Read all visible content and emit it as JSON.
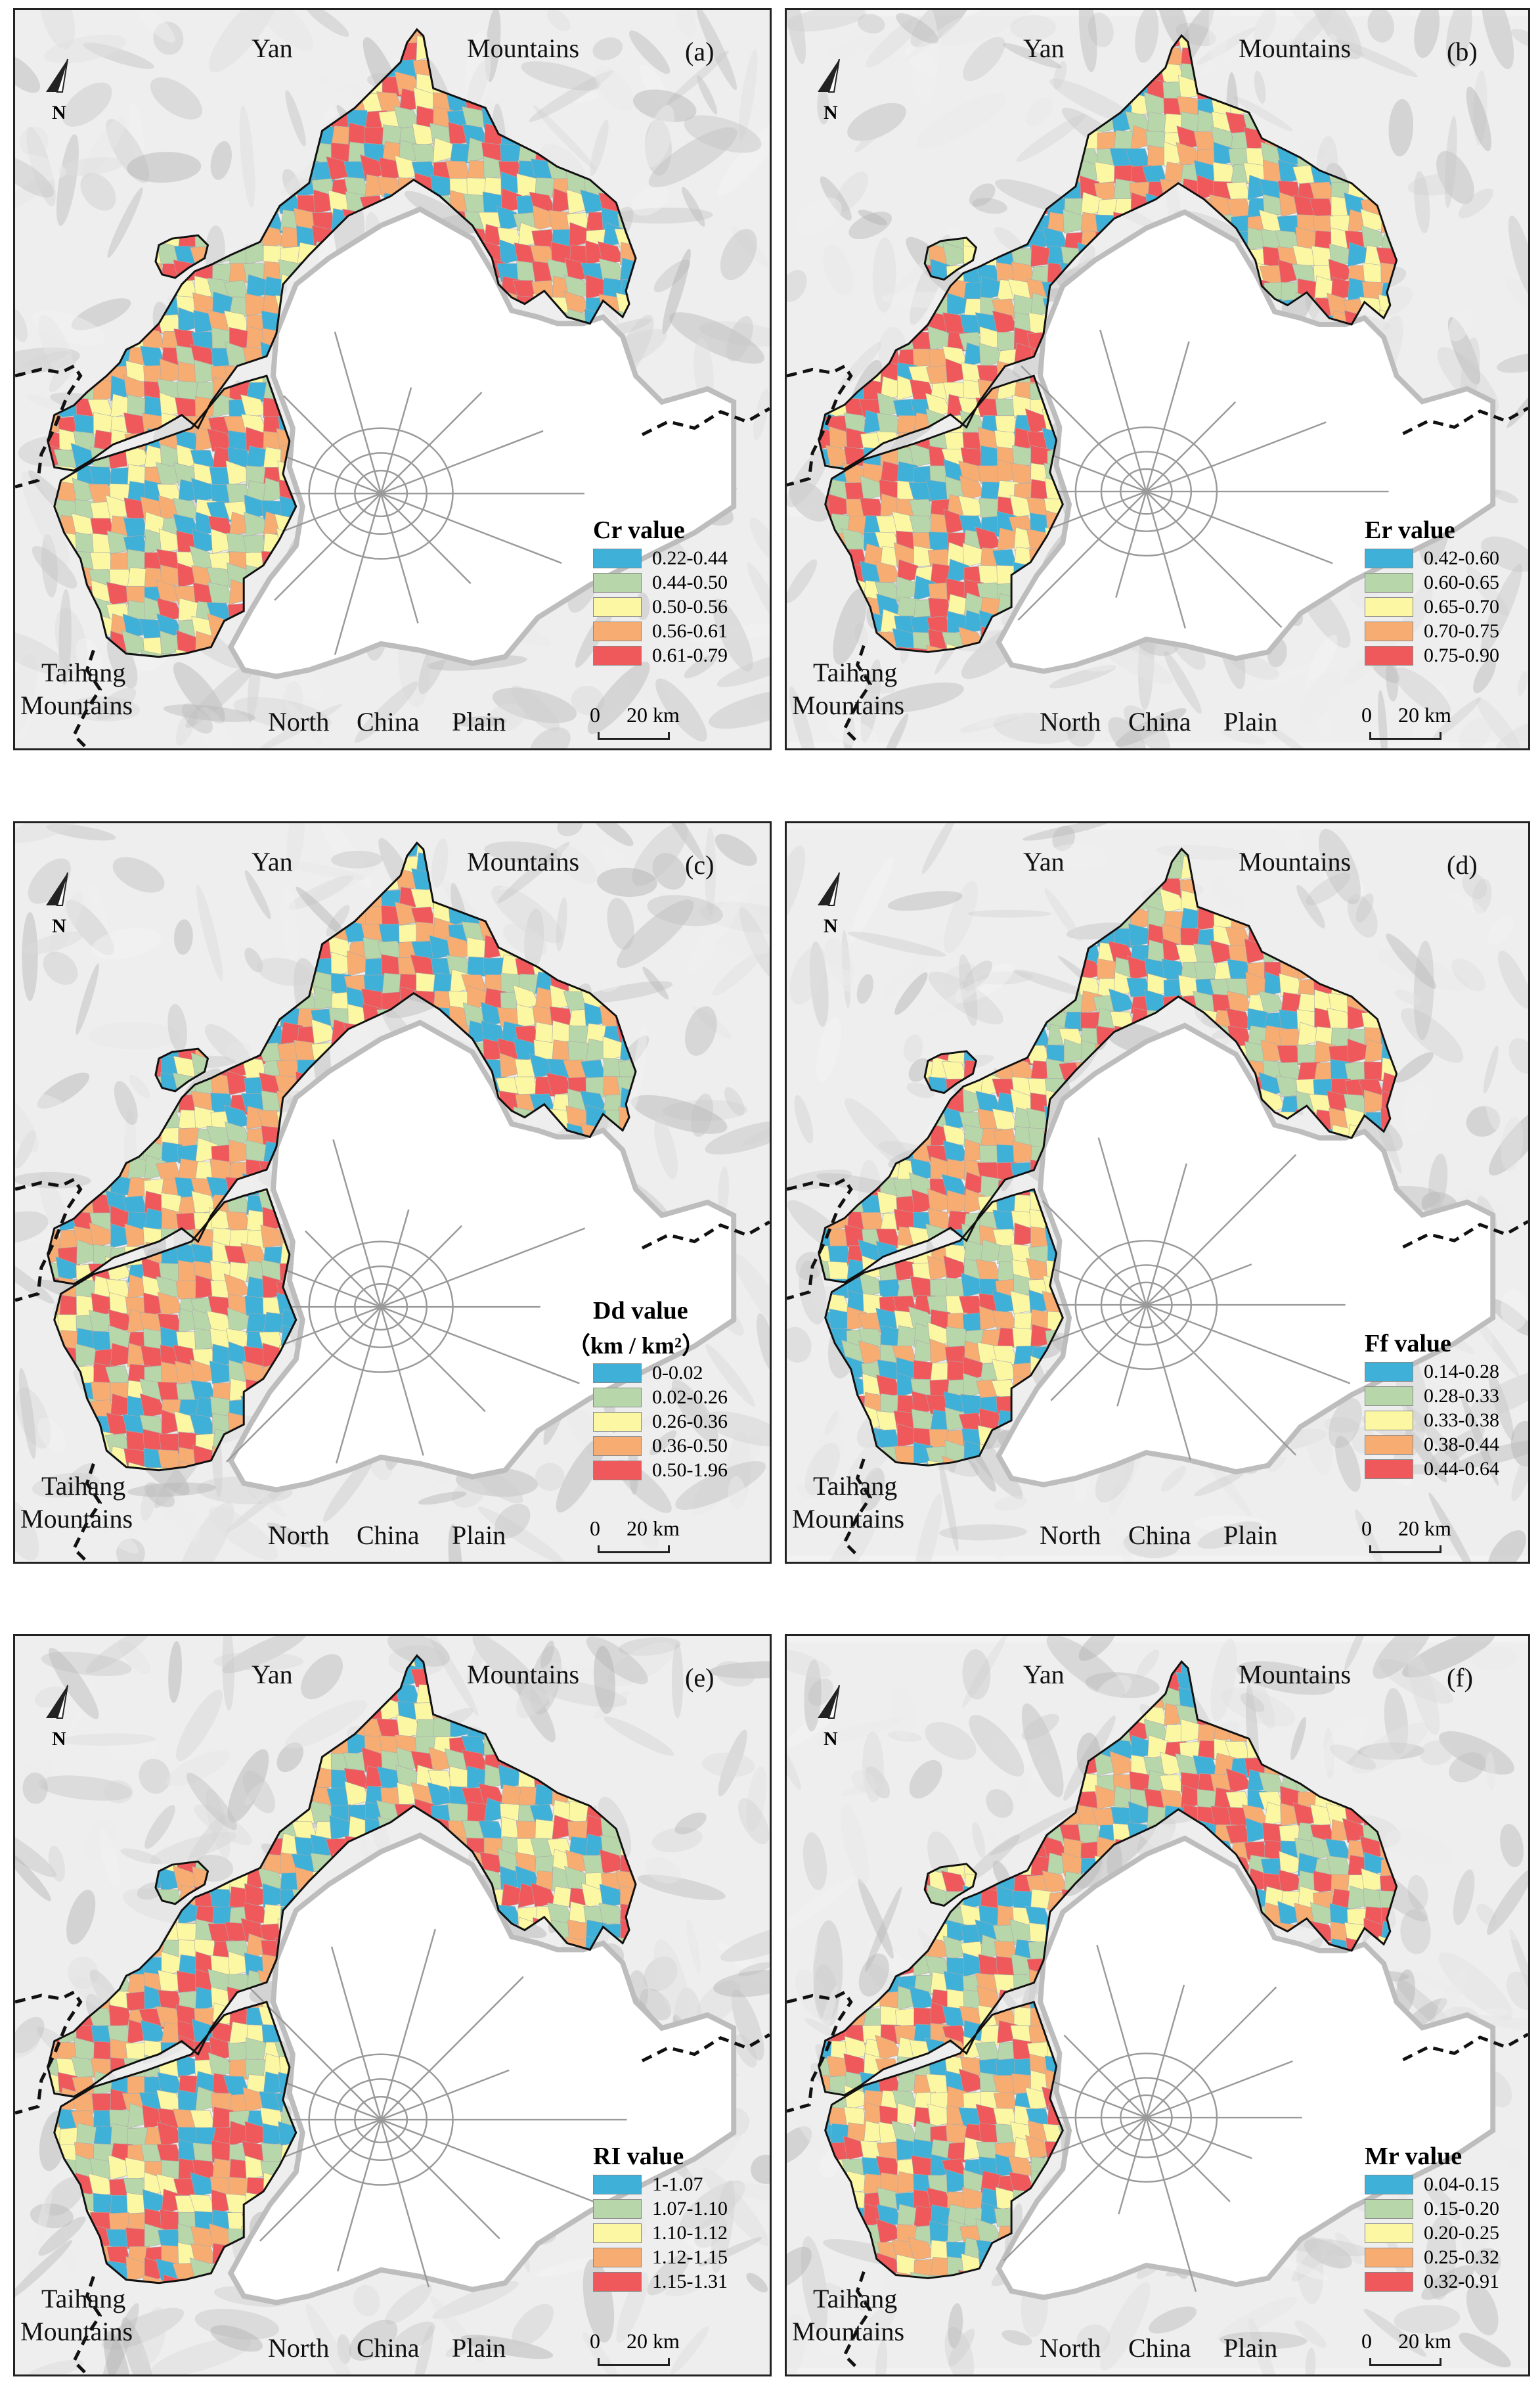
{
  "map_labels": {
    "yan": "Yan",
    "mountains": "Mountains",
    "taihang": "Taihang",
    "taihang_mountains": "Mountains",
    "north": "North",
    "china": "China",
    "plain": "Plain",
    "north_arrow": "N"
  },
  "scale_bar": {
    "zero": "0",
    "twenty": "20",
    "unit": "km"
  },
  "colors": {
    "blue": "#3fb0d8",
    "green": "#b7d6a9",
    "yellow": "#fbf7a3",
    "orange": "#f7ac72",
    "red": "#f0595b",
    "background": "#eeeeee",
    "boundary": "#111111",
    "roads": "#9a9a9a"
  },
  "panels": [
    {
      "letter": "(a)",
      "title": "Cr  value",
      "unit": "",
      "ranges": [
        "0.22-0.44",
        "0.44-0.50",
        "0.50-0.56",
        "0.56-0.61",
        "0.61-0.79"
      ]
    },
    {
      "letter": "(b)",
      "title": "Er  value",
      "unit": "",
      "ranges": [
        "0.42-0.60",
        "0.60-0.65",
        "0.65-0.70",
        "0.70-0.75",
        "0.75-0.90"
      ]
    },
    {
      "letter": "(c)",
      "title": "Dd  value",
      "unit": "（km / km²）",
      "ranges": [
        "0-0.02",
        "0.02-0.26",
        "0.26-0.36",
        "0.36-0.50",
        "0.50-1.96"
      ]
    },
    {
      "letter": "(d)",
      "title": "Ff  value",
      "unit": "",
      "ranges": [
        "0.14-0.28",
        "0.28-0.33",
        "0.33-0.38",
        "0.38-0.44",
        "0.44-0.64"
      ]
    },
    {
      "letter": "(e)",
      "title": "RI  value",
      "unit": "",
      "ranges": [
        "1-1.07",
        "1.07-1.10",
        "1.10-1.12",
        "1.12-1.15",
        "1.15-1.31"
      ]
    },
    {
      "letter": "(f)",
      "title": "Mr  value",
      "unit": "",
      "ranges": [
        "0.04-0.15",
        "0.15-0.20",
        "0.20-0.25",
        "0.25-0.32",
        "0.32-0.91"
      ]
    }
  ]
}
